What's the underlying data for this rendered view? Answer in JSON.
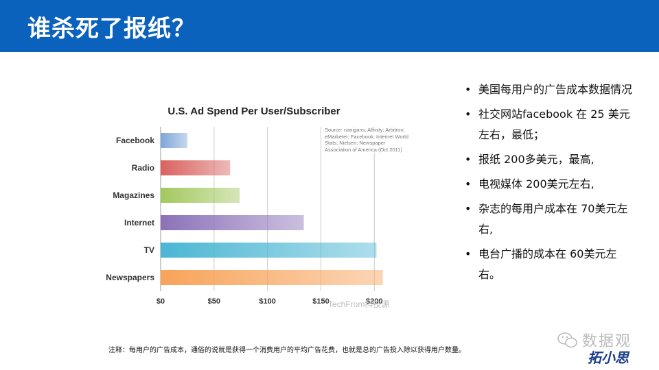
{
  "header": {
    "title": "谁杀死了报纸？"
  },
  "chart_data": {
    "type": "bar",
    "orientation": "horizontal",
    "title": "U.S. Ad Spend Per User/Subscriber",
    "categories": [
      "Facebook",
      "Radio",
      "Magazines",
      "Internet",
      "TV",
      "Newspapers"
    ],
    "values": [
      25,
      65,
      74,
      134,
      202,
      208
    ],
    "colors": [
      "#7ea6d8",
      "#d9625f",
      "#a3c85f",
      "#8b72b8",
      "#4bb6d3",
      "#f7a35a"
    ],
    "xlim": [
      0,
      230
    ],
    "x_ticks": [
      0,
      50,
      100,
      150,
      200
    ],
    "x_tick_labels": [
      "$0",
      "$50",
      "$100",
      "$150",
      "$200"
    ],
    "grid": true,
    "source": "Source: nanigans; Affinity; Arbitron; eMarketer; Facebook; Internet World Stats; Nielsen; Newspaper Association of America (Oct 2011)",
    "watermark": "TechFrom科技源"
  },
  "bullets": [
    "美国每用户的广告成本数据情况",
    "社交网站facebook 在 25 美元左右，最低；",
    "报纸 200多美元，最高,",
    "电视媒体 200美元左右,",
    "杂志的每用户成本在 70美元左右,",
    "电台广播的成本在 60美元左右。"
  ],
  "footnote": "注释：每用户的广告成本，通俗的说就是获得一个消费用户的平均广告花费，也就是总的广告投入除以获得用户数量。",
  "watermark": {
    "line1": "数据观",
    "line2": "拓小思"
  }
}
